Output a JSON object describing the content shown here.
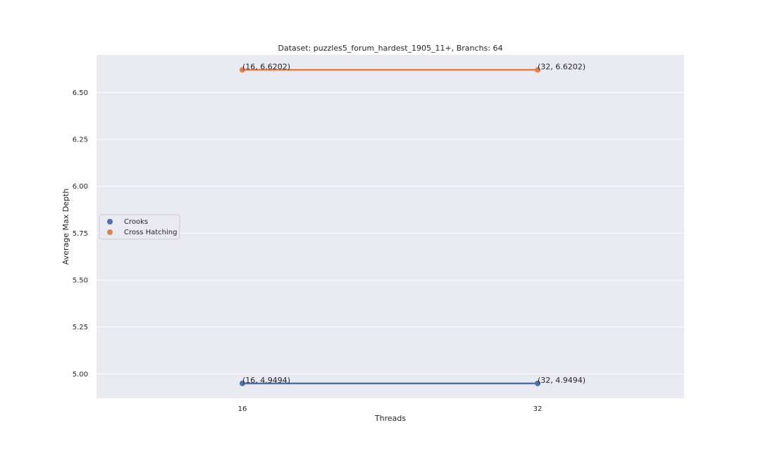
{
  "chart_data": {
    "type": "line",
    "title": "Dataset: puzzles5_forum_hardest_1905_11+, Branchs: 64",
    "xlabel": "Threads",
    "ylabel": "Average Max Depth",
    "categories": [
      "16",
      "32"
    ],
    "ylim": [
      4.87,
      6.7
    ],
    "yticks": [
      "5.00",
      "5.25",
      "5.50",
      "5.75",
      "6.00",
      "6.25",
      "6.50"
    ],
    "grid": true,
    "legend_position": "center-left",
    "series": [
      {
        "name": "Crooks",
        "color": "#4c72b0",
        "values": [
          4.9494,
          4.9494
        ],
        "labels": [
          "(16, 4.9494)",
          "(32, 4.9494)"
        ]
      },
      {
        "name": "Cross Hatching",
        "color": "#dd8452",
        "values": [
          6.6202,
          6.6202
        ],
        "labels": [
          "(16, 6.6202)",
          "(32, 6.6202)"
        ]
      }
    ]
  }
}
